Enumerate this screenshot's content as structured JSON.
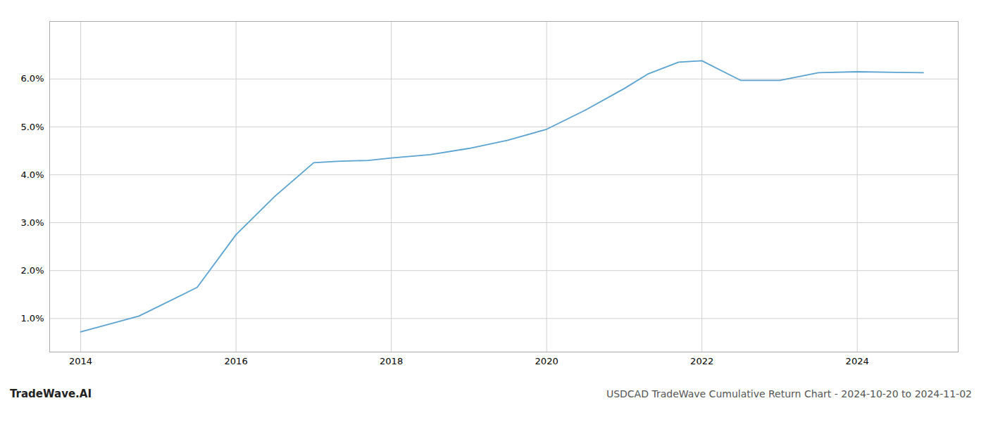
{
  "chart_data": {
    "type": "line",
    "title": "USDCAD TradeWave Cumulative Return Chart - 2024-10-20 to 2024-11-02",
    "annotations": [
      "TradeWave.AI"
    ],
    "x": [
      2014.0,
      2014.75,
      2015.5,
      2016.0,
      2016.5,
      2017.0,
      2017.3,
      2017.7,
      2018.0,
      2018.5,
      2019.0,
      2019.5,
      2020.0,
      2020.5,
      2021.0,
      2021.3,
      2021.7,
      2022.0,
      2022.5,
      2023.0,
      2023.5,
      2024.0,
      2024.85
    ],
    "values": [
      0.72,
      1.05,
      1.65,
      2.75,
      3.55,
      4.25,
      4.28,
      4.3,
      4.35,
      4.42,
      4.55,
      4.72,
      4.95,
      5.35,
      5.8,
      6.1,
      6.35,
      6.38,
      5.97,
      5.97,
      6.13,
      6.15,
      6.13
    ],
    "color": "#5ba3d0",
    "xlim": [
      2013.6,
      2025.3
    ],
    "ylim": [
      0.3,
      7.2
    ],
    "xticks": [
      2014,
      2016,
      2018,
      2020,
      2022,
      2024
    ],
    "yticks": [
      {
        "value": 1.0,
        "label": "1.0%"
      },
      {
        "value": 2.0,
        "label": "2.0%"
      },
      {
        "value": 3.0,
        "label": "3.0%"
      },
      {
        "value": 4.0,
        "label": "4.0%"
      },
      {
        "value": 5.0,
        "label": "5.0%"
      },
      {
        "value": 6.0,
        "label": "6.0%"
      }
    ],
    "grid": true
  }
}
